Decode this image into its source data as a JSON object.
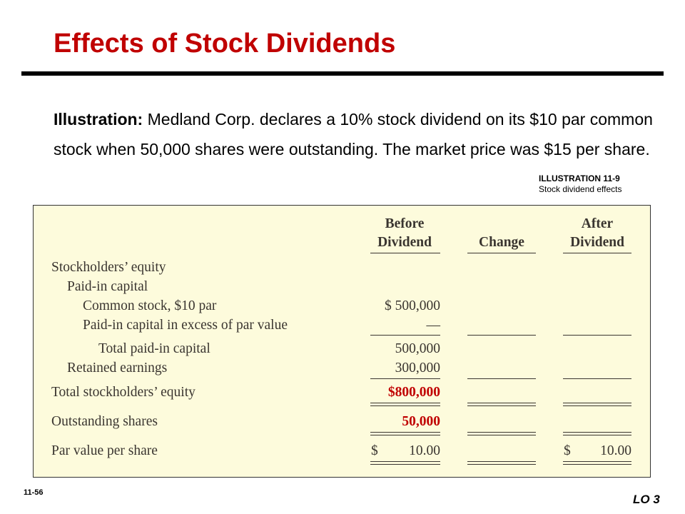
{
  "slide": {
    "title": "Effects of Stock Dividends",
    "intro_bold": "Illustration:",
    "intro_text": " Medland Corp. declares a 10% stock dividend on its $10 par common stock when 50,000 shares were outstanding. The market price was $15 per share.",
    "illustration_number": "ILLUSTRATION 11-9",
    "illustration_caption": "Stock dividend effects",
    "page_number": "11-56",
    "learning_objective": "LO 3"
  },
  "table": {
    "headers": {
      "before_line1": "Before",
      "before_line2": "Dividend",
      "change": "Change",
      "after_line1": "After",
      "after_line2": "Dividend"
    },
    "rows": {
      "se_heading": "Stockholders’ equity",
      "pic_heading": "Paid-in capital",
      "common_label": "Common stock, $10 par",
      "common_before": "$ 500,000",
      "excess_label": "Paid-in capital in excess of par value",
      "excess_before": "—",
      "total_pic_label": "Total paid-in capital",
      "total_pic_before": "500,000",
      "re_label": "Retained earnings",
      "re_before": "300,000",
      "total_se_label": "Total stockholders’ equity",
      "total_se_before": "$800,000",
      "shares_label": "Outstanding shares",
      "shares_before": "50,000",
      "par_label": "Par value per share",
      "par_before_symbol": "$",
      "par_before": "10.00",
      "par_after_symbol": "$",
      "par_after": "10.00"
    }
  }
}
